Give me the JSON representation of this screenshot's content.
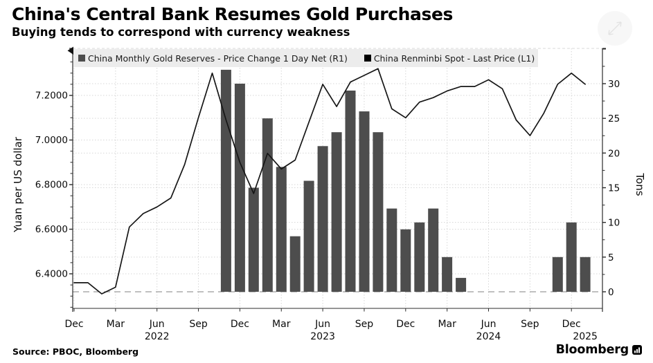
{
  "title": "China's Central Bank Resumes Gold Purchases",
  "subtitle": "Buying tends to correspond with currency weakness",
  "legend": {
    "items": [
      {
        "label": "China Monthly Gold Reserves - Price Change 1 Day Net (R1)",
        "color": "#4d4d4d"
      },
      {
        "label": "China Renminbi Spot - Last Price (L1)",
        "color": "#000000"
      }
    ]
  },
  "footer": {
    "source": "Source: PBOC, Bloomberg",
    "brand": "Bloomberg"
  },
  "colors": {
    "bar": "#4d4d4d",
    "line": "#161616",
    "grid": "#d6d6d6",
    "zero_line": "#9a9a9a",
    "spine": "#2b2b2b",
    "legend_bg": "#ececec"
  },
  "chart_data": {
    "type": "combo",
    "x": [
      "Dec 2021",
      "Jan 2022",
      "Feb 2022",
      "Mar 2022",
      "Apr 2022",
      "May 2022",
      "Jun 2022",
      "Jul 2022",
      "Aug 2022",
      "Sep 2022",
      "Oct 2022",
      "Nov 2022",
      "Dec 2022",
      "Jan 2023",
      "Feb 2023",
      "Mar 2023",
      "Apr 2023",
      "May 2023",
      "Jun 2023",
      "Jul 2023",
      "Aug 2023",
      "Sep 2023",
      "Oct 2023",
      "Nov 2023",
      "Dec 2023",
      "Jan 2024",
      "Feb 2024",
      "Mar 2024",
      "Apr 2024",
      "May 2024",
      "Jun 2024",
      "Jul 2024",
      "Aug 2024",
      "Sep 2024",
      "Oct 2024",
      "Nov 2024",
      "Dec 2024",
      "Jan 2025"
    ],
    "series": [
      {
        "name": "China Monthly Gold Reserves - Price Change 1 Day Net (R1)",
        "type": "bar",
        "axis": "right",
        "unit": "Tons",
        "color": "#4d4d4d",
        "values": [
          null,
          null,
          null,
          null,
          null,
          null,
          null,
          null,
          null,
          null,
          null,
          32,
          30,
          15,
          25,
          18,
          8,
          16,
          21,
          23,
          29,
          26,
          23,
          12,
          9,
          10,
          12,
          5,
          2,
          0,
          0,
          0,
          0,
          0,
          0,
          5,
          10,
          5
        ]
      },
      {
        "name": "China Renminbi Spot - Last Price (L1)",
        "type": "line",
        "axis": "left",
        "unit": "Yuan per US dollar",
        "color": "#161616",
        "values": [
          6.36,
          6.36,
          6.31,
          6.34,
          6.61,
          6.67,
          6.7,
          6.74,
          6.89,
          7.1,
          7.3,
          7.09,
          6.9,
          6.76,
          6.94,
          6.87,
          6.91,
          7.08,
          7.25,
          7.15,
          7.26,
          7.29,
          7.32,
          7.14,
          7.1,
          7.17,
          7.19,
          7.22,
          7.24,
          7.24,
          7.27,
          7.23,
          7.09,
          7.02,
          7.12,
          7.25,
          7.3,
          7.25
        ]
      }
    ],
    "left_axis": {
      "title": "Yuan per US dollar",
      "ticks": [
        {
          "v": 6.4,
          "label": "6.4000"
        },
        {
          "v": 6.6,
          "label": "6.6000"
        },
        {
          "v": 6.8,
          "label": "6.8000"
        },
        {
          "v": 7.0,
          "label": "7.0000"
        },
        {
          "v": 7.2,
          "label": "7.2000"
        }
      ],
      "minor_step": 0.05,
      "range": [
        6.25,
        7.41
      ],
      "grid": "dotted"
    },
    "right_axis": {
      "title": "Tons",
      "ticks": [
        {
          "v": 0,
          "label": "0"
        },
        {
          "v": 5,
          "label": "5"
        },
        {
          "v": 10,
          "label": "10"
        },
        {
          "v": 15,
          "label": "15"
        },
        {
          "v": 20,
          "label": "20"
        },
        {
          "v": 25,
          "label": "25"
        },
        {
          "v": 30,
          "label": "30"
        }
      ],
      "minor_step": 2.5,
      "zero_line_dashed": true,
      "grid": "dotted"
    },
    "x_axis": {
      "quarter_ticks": [
        {
          "m": 0,
          "label": "Dec"
        },
        {
          "m": 3,
          "label": "Mar"
        },
        {
          "m": 6,
          "label": "Jun"
        },
        {
          "m": 9,
          "label": "Sep"
        },
        {
          "m": 12,
          "label": "Dec"
        },
        {
          "m": 15,
          "label": "Mar"
        },
        {
          "m": 18,
          "label": "Jun"
        },
        {
          "m": 21,
          "label": "Sep"
        },
        {
          "m": 24,
          "label": "Dec"
        },
        {
          "m": 27,
          "label": "Mar"
        },
        {
          "m": 30,
          "label": "Jun"
        },
        {
          "m": 33,
          "label": "Sep"
        },
        {
          "m": 36,
          "label": "Dec"
        }
      ],
      "year_labels": [
        {
          "m": 6,
          "label": "2022"
        },
        {
          "m": 18,
          "label": "2023"
        },
        {
          "m": 30,
          "label": "2024"
        },
        {
          "m": 37,
          "label": "2025"
        }
      ]
    }
  }
}
